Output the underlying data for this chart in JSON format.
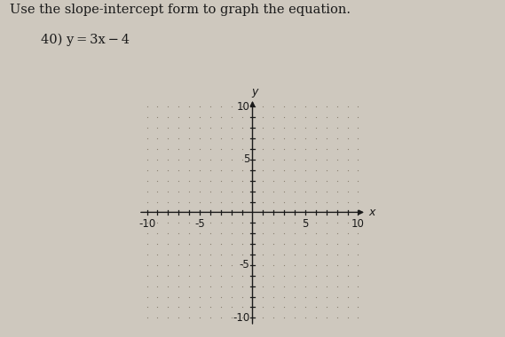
{
  "title_line1": "Use the slope-intercept form to graph the equation.",
  "title_line2": "40) y = 3x− 4",
  "xmin": -10,
  "xmax": 10,
  "ymin": -10,
  "ymax": 10,
  "axis_labels": {
    "x": "x",
    "y": "y"
  },
  "axis_color": "#1a1a1a",
  "bg_color": "#cec8be",
  "text_color": "#1a1a1a",
  "dot_color": "#8a8070",
  "font_size_title": 10.5,
  "font_size_subtitle": 10.5,
  "font_size_tick": 8.5,
  "font_size_axlabel": 9,
  "x_tick_labels": [
    -10,
    -5,
    5,
    10
  ],
  "y_tick_labels": [
    10,
    5,
    -5,
    -10
  ]
}
